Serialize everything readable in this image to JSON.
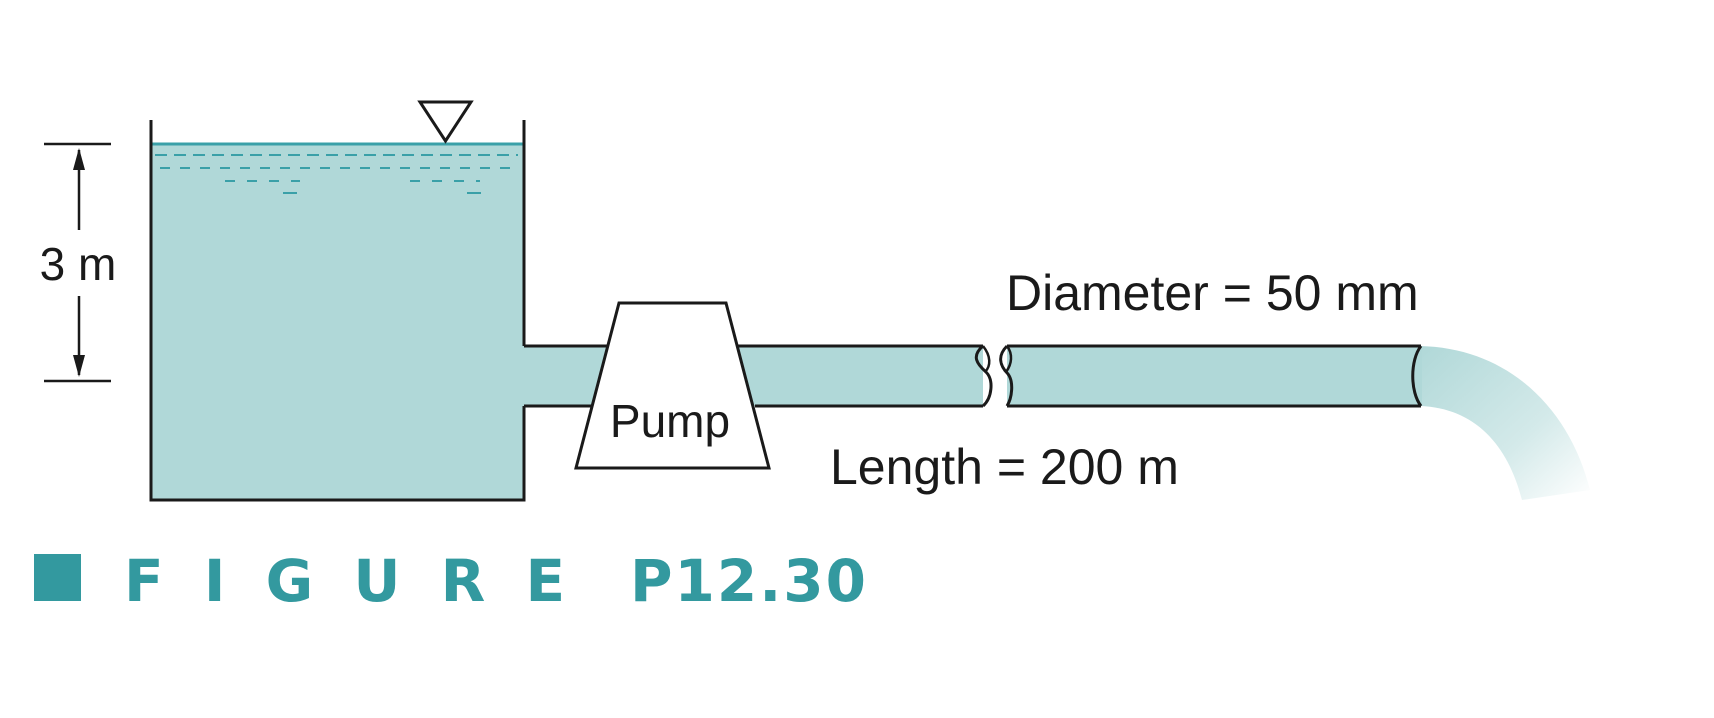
{
  "labels": {
    "height": "3 m",
    "pump": "Pump",
    "diameter": "Diameter = 50 mm",
    "length": "Length = 200 m"
  },
  "caption": {
    "word": "F I G U R E",
    "number": "P12.30"
  },
  "colors": {
    "water": "#b0d8d8",
    "water_dash": "#3aa0a8",
    "outline": "#1a1a1a",
    "caption": "#33999f"
  },
  "icons": {
    "free_surface": "inverted-triangle-icon"
  }
}
